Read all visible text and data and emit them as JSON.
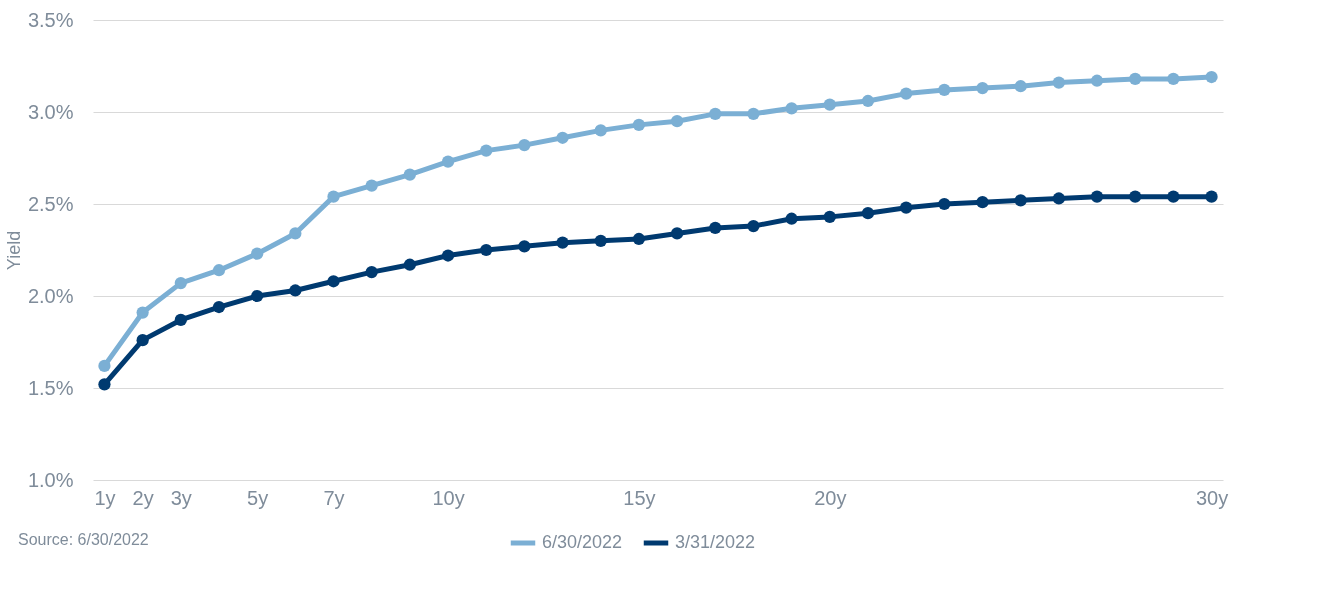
{
  "chart_data": {
    "type": "line",
    "ylabel": "Yield",
    "x": [
      1,
      2,
      3,
      4,
      5,
      6,
      7,
      8,
      9,
      10,
      11,
      12,
      13,
      14,
      15,
      16,
      17,
      18,
      19,
      20,
      21,
      22,
      23,
      24,
      25,
      26,
      27,
      28,
      29,
      30
    ],
    "series": [
      {
        "name": "6/30/2022",
        "color": "#7bafd4",
        "values": [
          1.62,
          1.91,
          2.07,
          2.14,
          2.23,
          2.34,
          2.54,
          2.6,
          2.66,
          2.73,
          2.79,
          2.82,
          2.86,
          2.9,
          2.93,
          2.95,
          2.99,
          2.99,
          3.02,
          3.04,
          3.06,
          3.1,
          3.12,
          3.13,
          3.14,
          3.16,
          3.17,
          3.18,
          3.18,
          3.19
        ]
      },
      {
        "name": "3/31/2022",
        "color": "#003a70",
        "values": [
          1.52,
          1.76,
          1.87,
          1.94,
          2.0,
          2.03,
          2.08,
          2.13,
          2.17,
          2.22,
          2.25,
          2.27,
          2.29,
          2.3,
          2.31,
          2.34,
          2.37,
          2.38,
          2.42,
          2.43,
          2.45,
          2.48,
          2.5,
          2.51,
          2.52,
          2.53,
          2.54,
          2.54,
          2.54,
          2.54
        ]
      }
    ],
    "xlim": [
      0.7,
      30.3
    ],
    "xticks": [
      {
        "value": 1,
        "label": "1y"
      },
      {
        "value": 2,
        "label": "2y"
      },
      {
        "value": 3,
        "label": "3y"
      },
      {
        "value": 5,
        "label": "5y"
      },
      {
        "value": 7,
        "label": "7y"
      },
      {
        "value": 10,
        "label": "10y"
      },
      {
        "value": 15,
        "label": "15y"
      },
      {
        "value": 20,
        "label": "20y"
      },
      {
        "value": 30,
        "label": "30y"
      }
    ],
    "ylim": [
      1.0,
      3.5
    ],
    "yticks": [
      {
        "value": 1.0,
        "label": "1.0%"
      },
      {
        "value": 1.5,
        "label": "1.5%"
      },
      {
        "value": 2.0,
        "label": "2.0%"
      },
      {
        "value": 2.5,
        "label": "2.5%"
      },
      {
        "value": 3.0,
        "label": "3.0%"
      },
      {
        "value": 3.5,
        "label": "3.5%"
      }
    ],
    "grid": "y",
    "legend": "bottom",
    "marker": "circle",
    "line_style": "solid",
    "annotations": [
      "Source: 6/30/2022"
    ]
  }
}
